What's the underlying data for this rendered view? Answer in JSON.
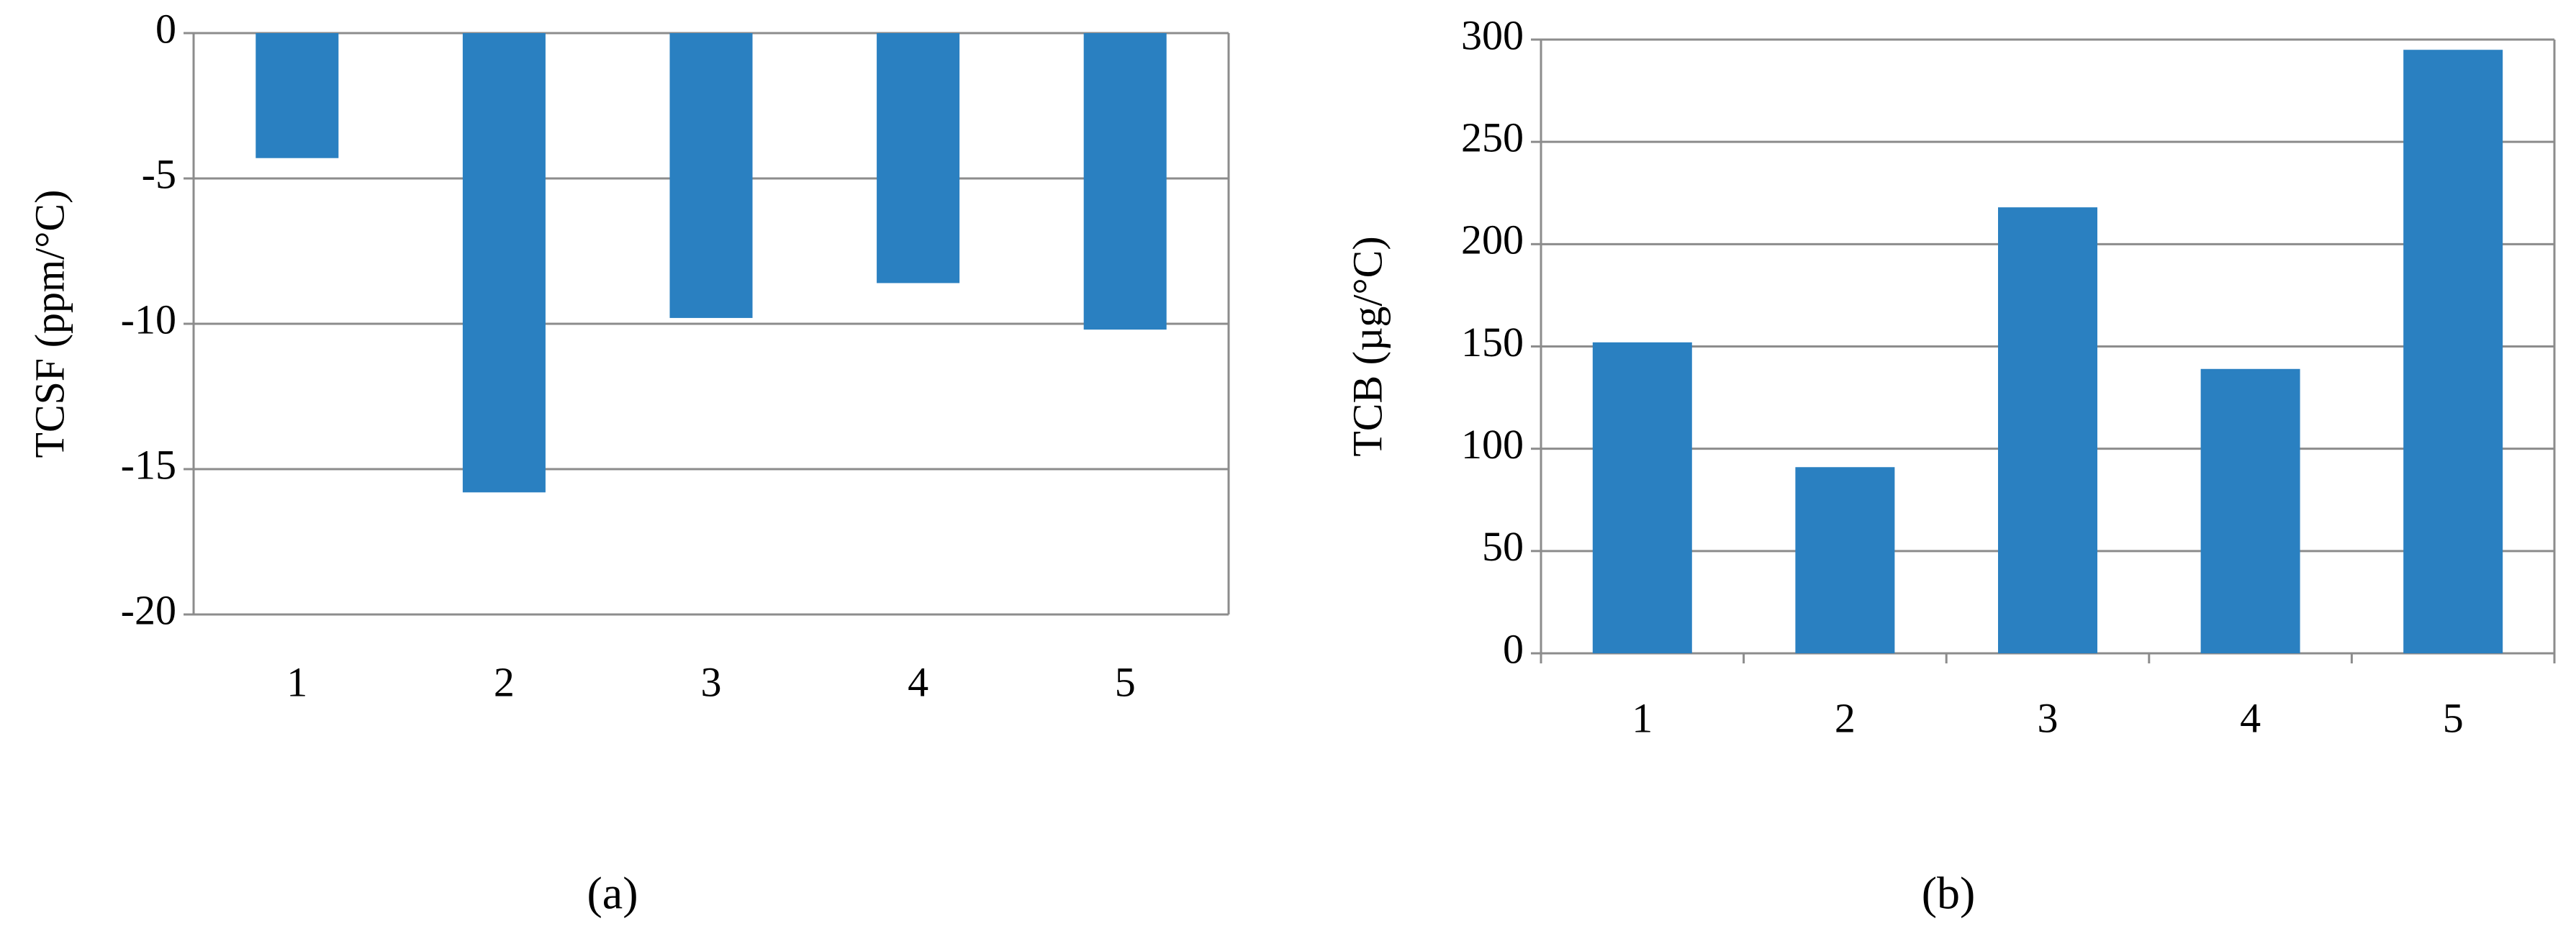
{
  "chart_data": [
    {
      "type": "bar",
      "caption": "(a)",
      "y_label": "TCSF (ppm/°C)",
      "categories": [
        "1",
        "2",
        "3",
        "4",
        "5"
      ],
      "values": [
        -4.3,
        -15.8,
        -9.8,
        -8.6,
        -10.2
      ],
      "color": "#2a80c1",
      "ylim": [
        -20,
        0
      ],
      "yticks": [
        -20,
        -15,
        -10,
        -5,
        0
      ],
      "grid": true
    },
    {
      "type": "bar",
      "caption": "(b)",
      "y_label": "TCB (µg/°C)",
      "categories": [
        "1",
        "2",
        "3",
        "4",
        "5"
      ],
      "values": [
        152,
        91,
        218,
        139,
        295
      ],
      "color": "#2a80c1",
      "ylim": [
        0,
        300
      ],
      "yticks": [
        0,
        50,
        100,
        150,
        200,
        250,
        300
      ],
      "grid": true
    }
  ]
}
